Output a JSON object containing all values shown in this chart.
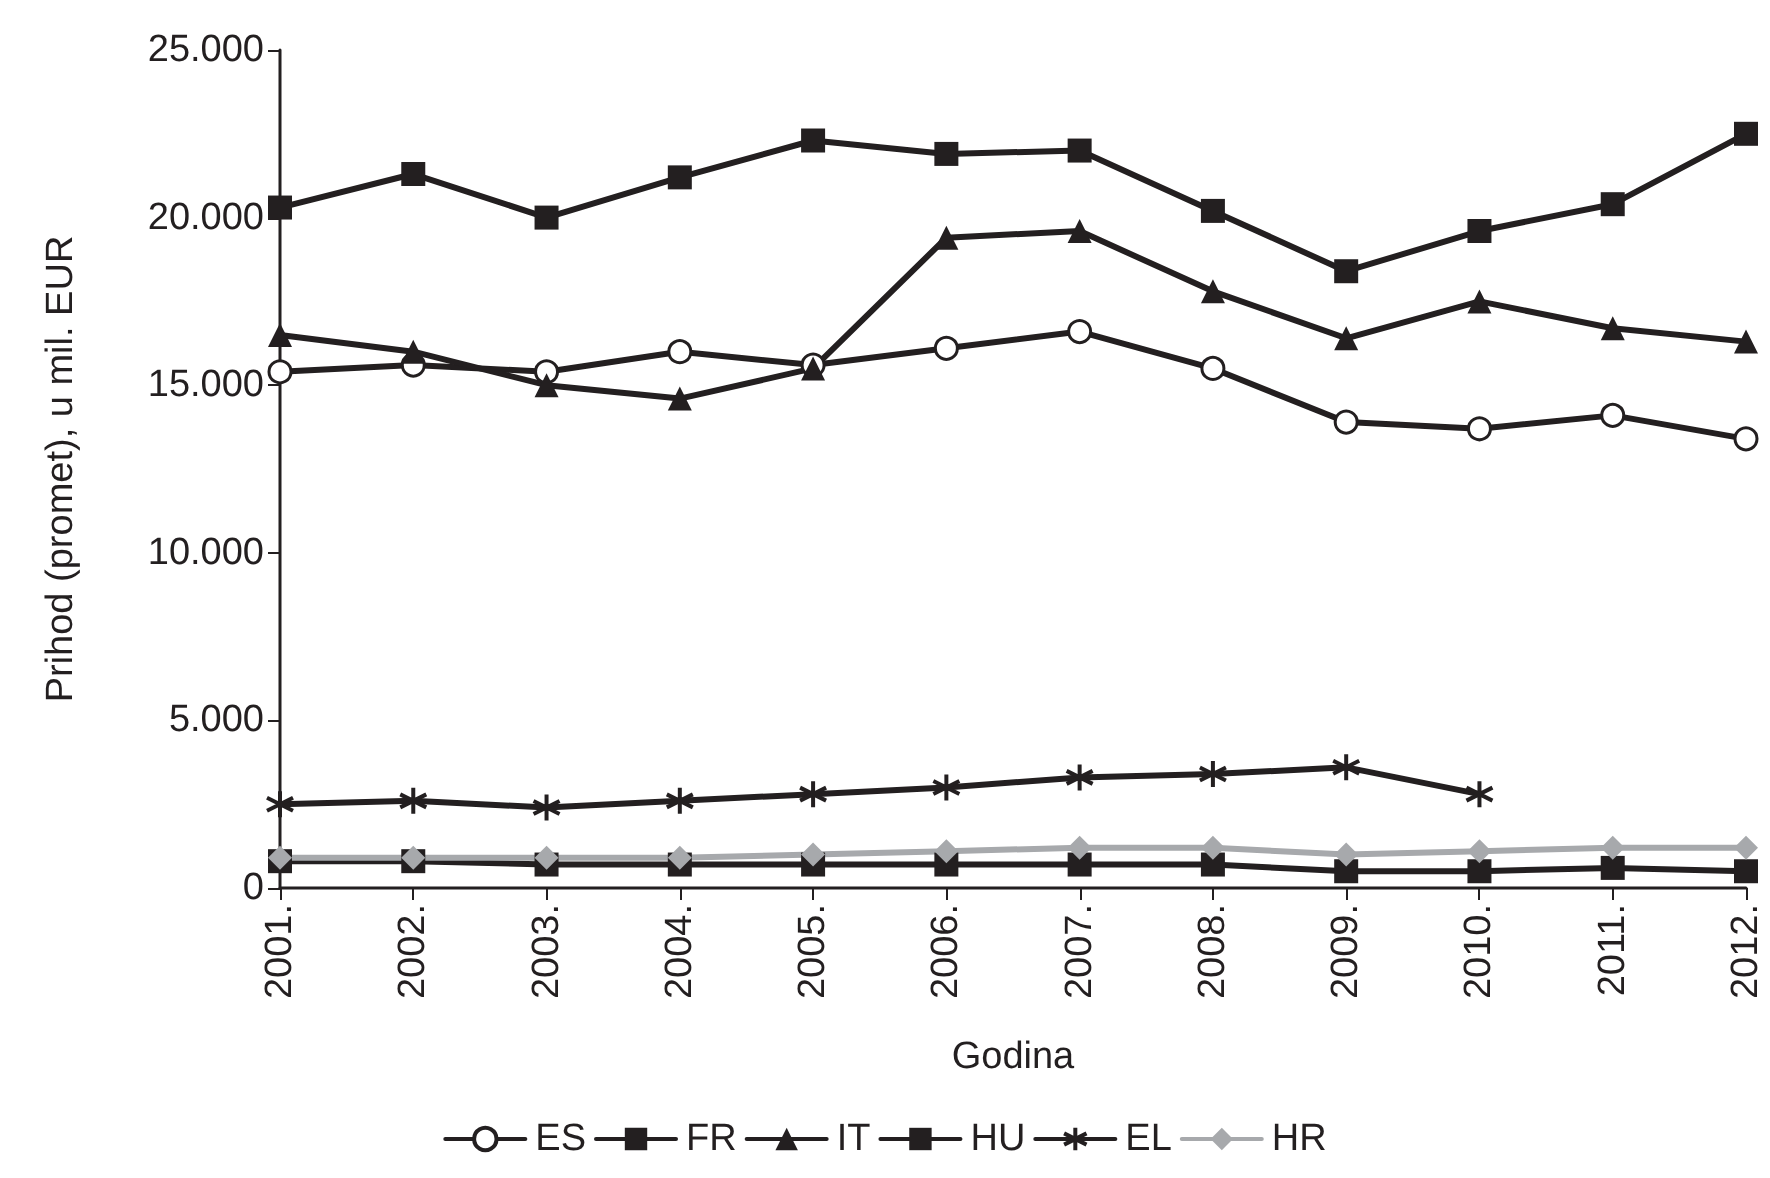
{
  "chart_data": {
    "type": "line",
    "xlabel": "Godina",
    "ylabel": "Prihod (promet), u mil. EUR",
    "categories": [
      "2001.",
      "2002.",
      "2003.",
      "2004.",
      "2005.",
      "2006.",
      "2007.",
      "2008.",
      "2009.",
      "2010.",
      "2011.",
      "2012."
    ],
    "series": [
      {
        "name": "ES",
        "color": "#231f20",
        "marker": "circle",
        "values": [
          15400,
          15600,
          15400,
          16000,
          15600,
          16100,
          16600,
          15500,
          13900,
          13700,
          14100,
          13400
        ]
      },
      {
        "name": "FR",
        "color": "#231f20",
        "marker": "square",
        "values": [
          20300,
          21300,
          20000,
          21200,
          22300,
          21900,
          22000,
          20200,
          18400,
          19600,
          20400,
          22500
        ]
      },
      {
        "name": "IT",
        "color": "#231f20",
        "marker": "triangle",
        "values": [
          16500,
          16000,
          15000,
          14600,
          15500,
          19400,
          19600,
          17800,
          16400,
          17500,
          16700,
          16300
        ]
      },
      {
        "name": "HU",
        "color": "#231f20",
        "marker": "square",
        "values": [
          800,
          800,
          700,
          700,
          700,
          700,
          700,
          700,
          500,
          500,
          600,
          500
        ]
      },
      {
        "name": "EL",
        "color": "#231f20",
        "marker": "cross",
        "values": [
          2500,
          2600,
          2400,
          2600,
          2800,
          3000,
          3300,
          3400,
          3600,
          2800,
          null,
          null
        ]
      },
      {
        "name": "HR",
        "color": "#a7a9ac",
        "marker": "diamond",
        "values": [
          900,
          900,
          900,
          900,
          1000,
          1100,
          1200,
          1200,
          1000,
          1100,
          1200,
          1200
        ]
      }
    ],
    "ylim": [
      0,
      25000
    ],
    "yticks": [
      {
        "value": 0,
        "label": "0"
      },
      {
        "value": 5000,
        "label": "5.000"
      },
      {
        "value": 10000,
        "label": "10.000"
      },
      {
        "value": 15000,
        "label": "15.000"
      },
      {
        "value": 20000,
        "label": "20.000"
      },
      {
        "value": 25000,
        "label": "25.000"
      }
    ],
    "grid": false,
    "legend": "bottom",
    "line_style": "solid"
  }
}
